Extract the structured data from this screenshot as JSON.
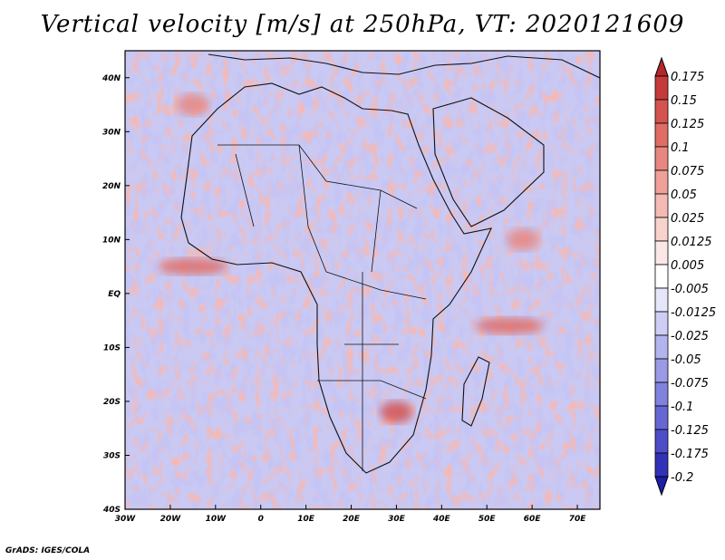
{
  "chart_data": {
    "type": "heatmap",
    "title": "Vertical velocity [m/s] at 250hPa, VT: 2020121609",
    "variable": "Vertical velocity",
    "units": "m/s",
    "level": "250hPa",
    "valid_time": "2020121609",
    "xlim": [
      -30,
      75
    ],
    "ylim": [
      -40,
      45
    ],
    "x_ticks": [
      {
        "value": -30,
        "label": "30W"
      },
      {
        "value": -20,
        "label": "20W"
      },
      {
        "value": -10,
        "label": "10W"
      },
      {
        "value": 0,
        "label": "0"
      },
      {
        "value": 10,
        "label": "10E"
      },
      {
        "value": 20,
        "label": "20E"
      },
      {
        "value": 30,
        "label": "30E"
      },
      {
        "value": 40,
        "label": "40E"
      },
      {
        "value": 50,
        "label": "50E"
      },
      {
        "value": 60,
        "label": "60E"
      },
      {
        "value": 70,
        "label": "70E"
      }
    ],
    "y_ticks": [
      {
        "value": 40,
        "label": "40N"
      },
      {
        "value": 30,
        "label": "30N"
      },
      {
        "value": 20,
        "label": "20N"
      },
      {
        "value": 10,
        "label": "10N"
      },
      {
        "value": 0,
        "label": "EQ"
      },
      {
        "value": -10,
        "label": "10S"
      },
      {
        "value": -20,
        "label": "20S"
      },
      {
        "value": -30,
        "label": "30S"
      },
      {
        "value": -40,
        "label": "40S"
      }
    ],
    "colorbar": {
      "levels": [
        0.175,
        0.15,
        0.125,
        0.1,
        0.075,
        0.05,
        0.025,
        0.0125,
        0.005,
        -0.005,
        -0.0125,
        -0.025,
        -0.05,
        -0.075,
        -0.1,
        -0.125,
        -0.175,
        -0.2
      ],
      "labels": [
        "0.175",
        "0.15",
        "0.125",
        "0.1",
        "0.075",
        "0.05",
        "0.025",
        "0.0125",
        "0.005",
        "-0.005",
        "-0.0125",
        "-0.025",
        "-0.05",
        "-0.075",
        "-0.1",
        "-0.125",
        "-0.175",
        "-0.2"
      ],
      "colors": [
        "#b4282a",
        "#c53b39",
        "#d4534f",
        "#df6d66",
        "#e8877f",
        "#efa199",
        "#f4bab3",
        "#f8d2cd",
        "#fbe8e6",
        "#ffffff",
        "#e6e6fb",
        "#cdcdf5",
        "#b3b3ee",
        "#9a9ae6",
        "#8181de",
        "#6767d4",
        "#4d4dc8",
        "#3232b8",
        "#1e1ea6"
      ]
    },
    "features": [
      {
        "type": "updraft_band",
        "lon": -15,
        "lat": 5,
        "level": "0.1"
      },
      {
        "type": "updraft_band",
        "lon": 55,
        "lat": -6,
        "level": "0.1"
      },
      {
        "type": "updraft_patch",
        "lon": 58,
        "lat": 10,
        "level": "0.075"
      },
      {
        "type": "updraft_patch",
        "lon": 30,
        "lat": -22,
        "level": "0.125"
      },
      {
        "type": "updraft_patch",
        "lon": -15,
        "lat": 35,
        "level": "0.075"
      }
    ]
  },
  "colors": {
    "downdraft_base": "#8a8ee6",
    "updraft_base": "#e8877f",
    "coastline": "#111111"
  },
  "credit": "GrADS: IGES/COLA"
}
